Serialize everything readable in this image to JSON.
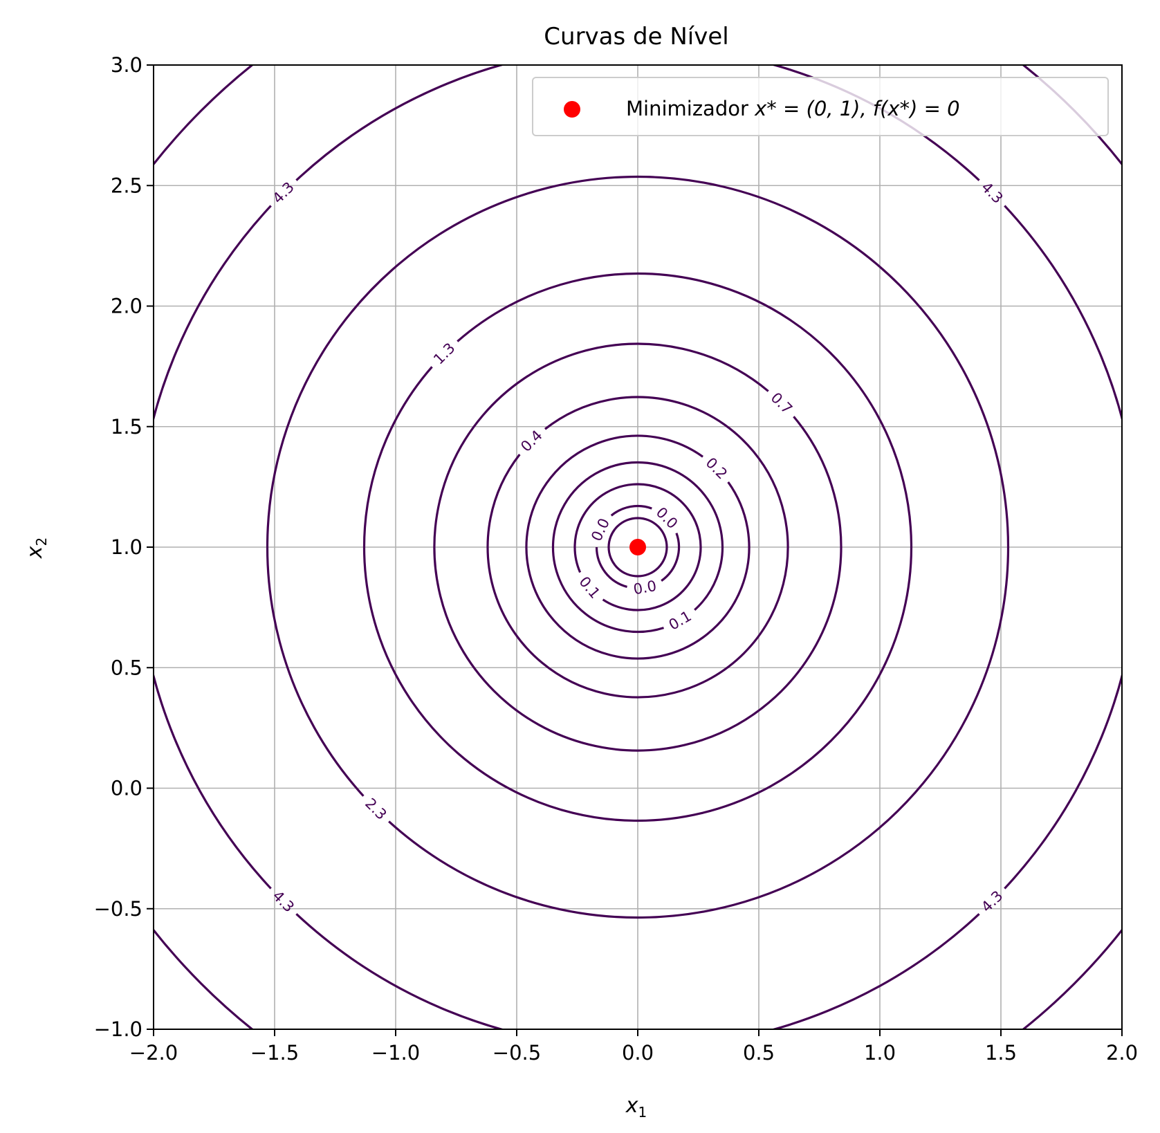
{
  "chart_data": {
    "type": "contour",
    "title": "Curvas de Nível",
    "xlabel": {
      "main": "x",
      "sub": "1"
    },
    "ylabel": {
      "main": "x",
      "sub": "2"
    },
    "xlim": [
      -2.0,
      2.0
    ],
    "ylim": [
      -1.0,
      3.0
    ],
    "xticks": [
      -2.0,
      -1.5,
      -1.0,
      -0.5,
      0.0,
      0.5,
      1.0,
      1.5,
      2.0
    ],
    "yticks": [
      -1.0,
      -0.5,
      0.0,
      0.5,
      1.0,
      1.5,
      2.0,
      2.5,
      3.0
    ],
    "xtick_labels": [
      "−2.0",
      "−1.5",
      "−1.0",
      "−0.5",
      "0.0",
      "0.5",
      "1.0",
      "1.5",
      "2.0"
    ],
    "ytick_labels": [
      "−1.0",
      "−0.5",
      "0.0",
      "0.5",
      "1.0",
      "1.5",
      "2.0",
      "2.5",
      "3.0"
    ],
    "grid": true,
    "center": {
      "x": 0.0,
      "y": 1.0
    },
    "contour_color": "#440154",
    "contours": [
      {
        "radius": 0.12,
        "labels": []
      },
      {
        "radius": 0.17,
        "labels": [
          {
            "text": "0.0",
            "angle_deg": 45
          },
          {
            "text": "0.0",
            "angle_deg": 155
          },
          {
            "text": "0.0",
            "angle_deg": 280
          }
        ]
      },
      {
        "radius": 0.26,
        "labels": [
          {
            "text": "0.1",
            "angle_deg": 220
          }
        ]
      },
      {
        "radius": 0.35,
        "labels": [
          {
            "text": "0.1",
            "angle_deg": 300
          }
        ]
      },
      {
        "radius": 0.46,
        "labels": [
          {
            "text": "0.2",
            "angle_deg": 45
          }
        ]
      },
      {
        "radius": 0.62,
        "labels": [
          {
            "text": "0.4",
            "angle_deg": 135
          }
        ]
      },
      {
        "radius": 0.84,
        "labels": [
          {
            "text": "0.7",
            "angle_deg": 45
          }
        ]
      },
      {
        "radius": 1.13,
        "labels": [
          {
            "text": "1.3",
            "angle_deg": 135
          }
        ]
      },
      {
        "radius": 1.53,
        "labels": [
          {
            "text": "2.3",
            "angle_deg": 225
          }
        ]
      },
      {
        "radius": 2.07,
        "labels": [
          {
            "text": "4.3",
            "angle_deg": 135
          },
          {
            "text": "4.3",
            "angle_deg": 45
          },
          {
            "text": "4.3",
            "angle_deg": 225
          },
          {
            "text": "4.3",
            "angle_deg": 315
          }
        ]
      }
    ],
    "corner_contour_radius": 2.55,
    "points": [
      {
        "x": 0.0,
        "y": 1.0,
        "color": "#ff0000"
      }
    ],
    "legend": {
      "position": "upper-right",
      "label_prefix": "Minimizador ",
      "label_math": "x* = (0, 1), f(x*) = 0"
    }
  }
}
